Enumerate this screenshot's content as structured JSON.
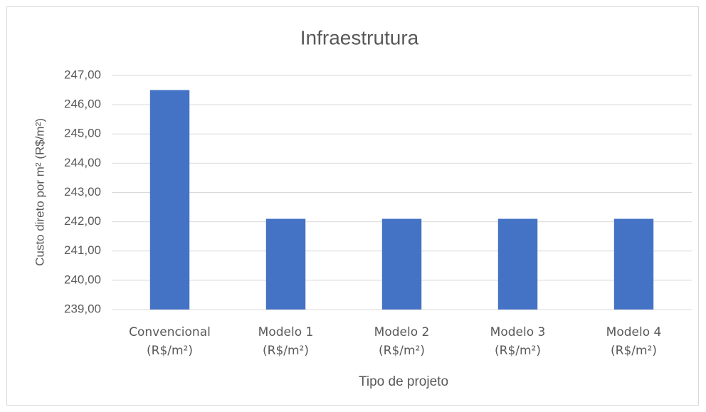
{
  "chart_data": {
    "type": "bar",
    "title": "Infraestrutura",
    "x_label": "Tipo de projeto",
    "y_label": "Custo direto por m² (R$/m²)",
    "categories": [
      "Convencional (R$/m²)",
      "Modelo 1 (R$/m²)",
      "Modelo 2 (R$/m²)",
      "Modelo 3 (R$/m²)",
      "Modelo 4 (R$/m²)"
    ],
    "values": [
      246.5,
      242.1,
      242.1,
      242.1,
      242.1
    ],
    "color": "#4472c4",
    "ylim": [
      239,
      247
    ],
    "yticks": [
      {
        "value": 239,
        "label": "239,00"
      },
      {
        "value": 240,
        "label": "240,00"
      },
      {
        "value": 241,
        "label": "241,00"
      },
      {
        "value": 242,
        "label": "242,00"
      },
      {
        "value": 243,
        "label": "243,00"
      },
      {
        "value": 244,
        "label": "244,00"
      },
      {
        "value": 245,
        "label": "245,00"
      },
      {
        "value": 246,
        "label": "246,00"
      },
      {
        "value": 247,
        "label": "247,00"
      }
    ],
    "grid": true
  }
}
